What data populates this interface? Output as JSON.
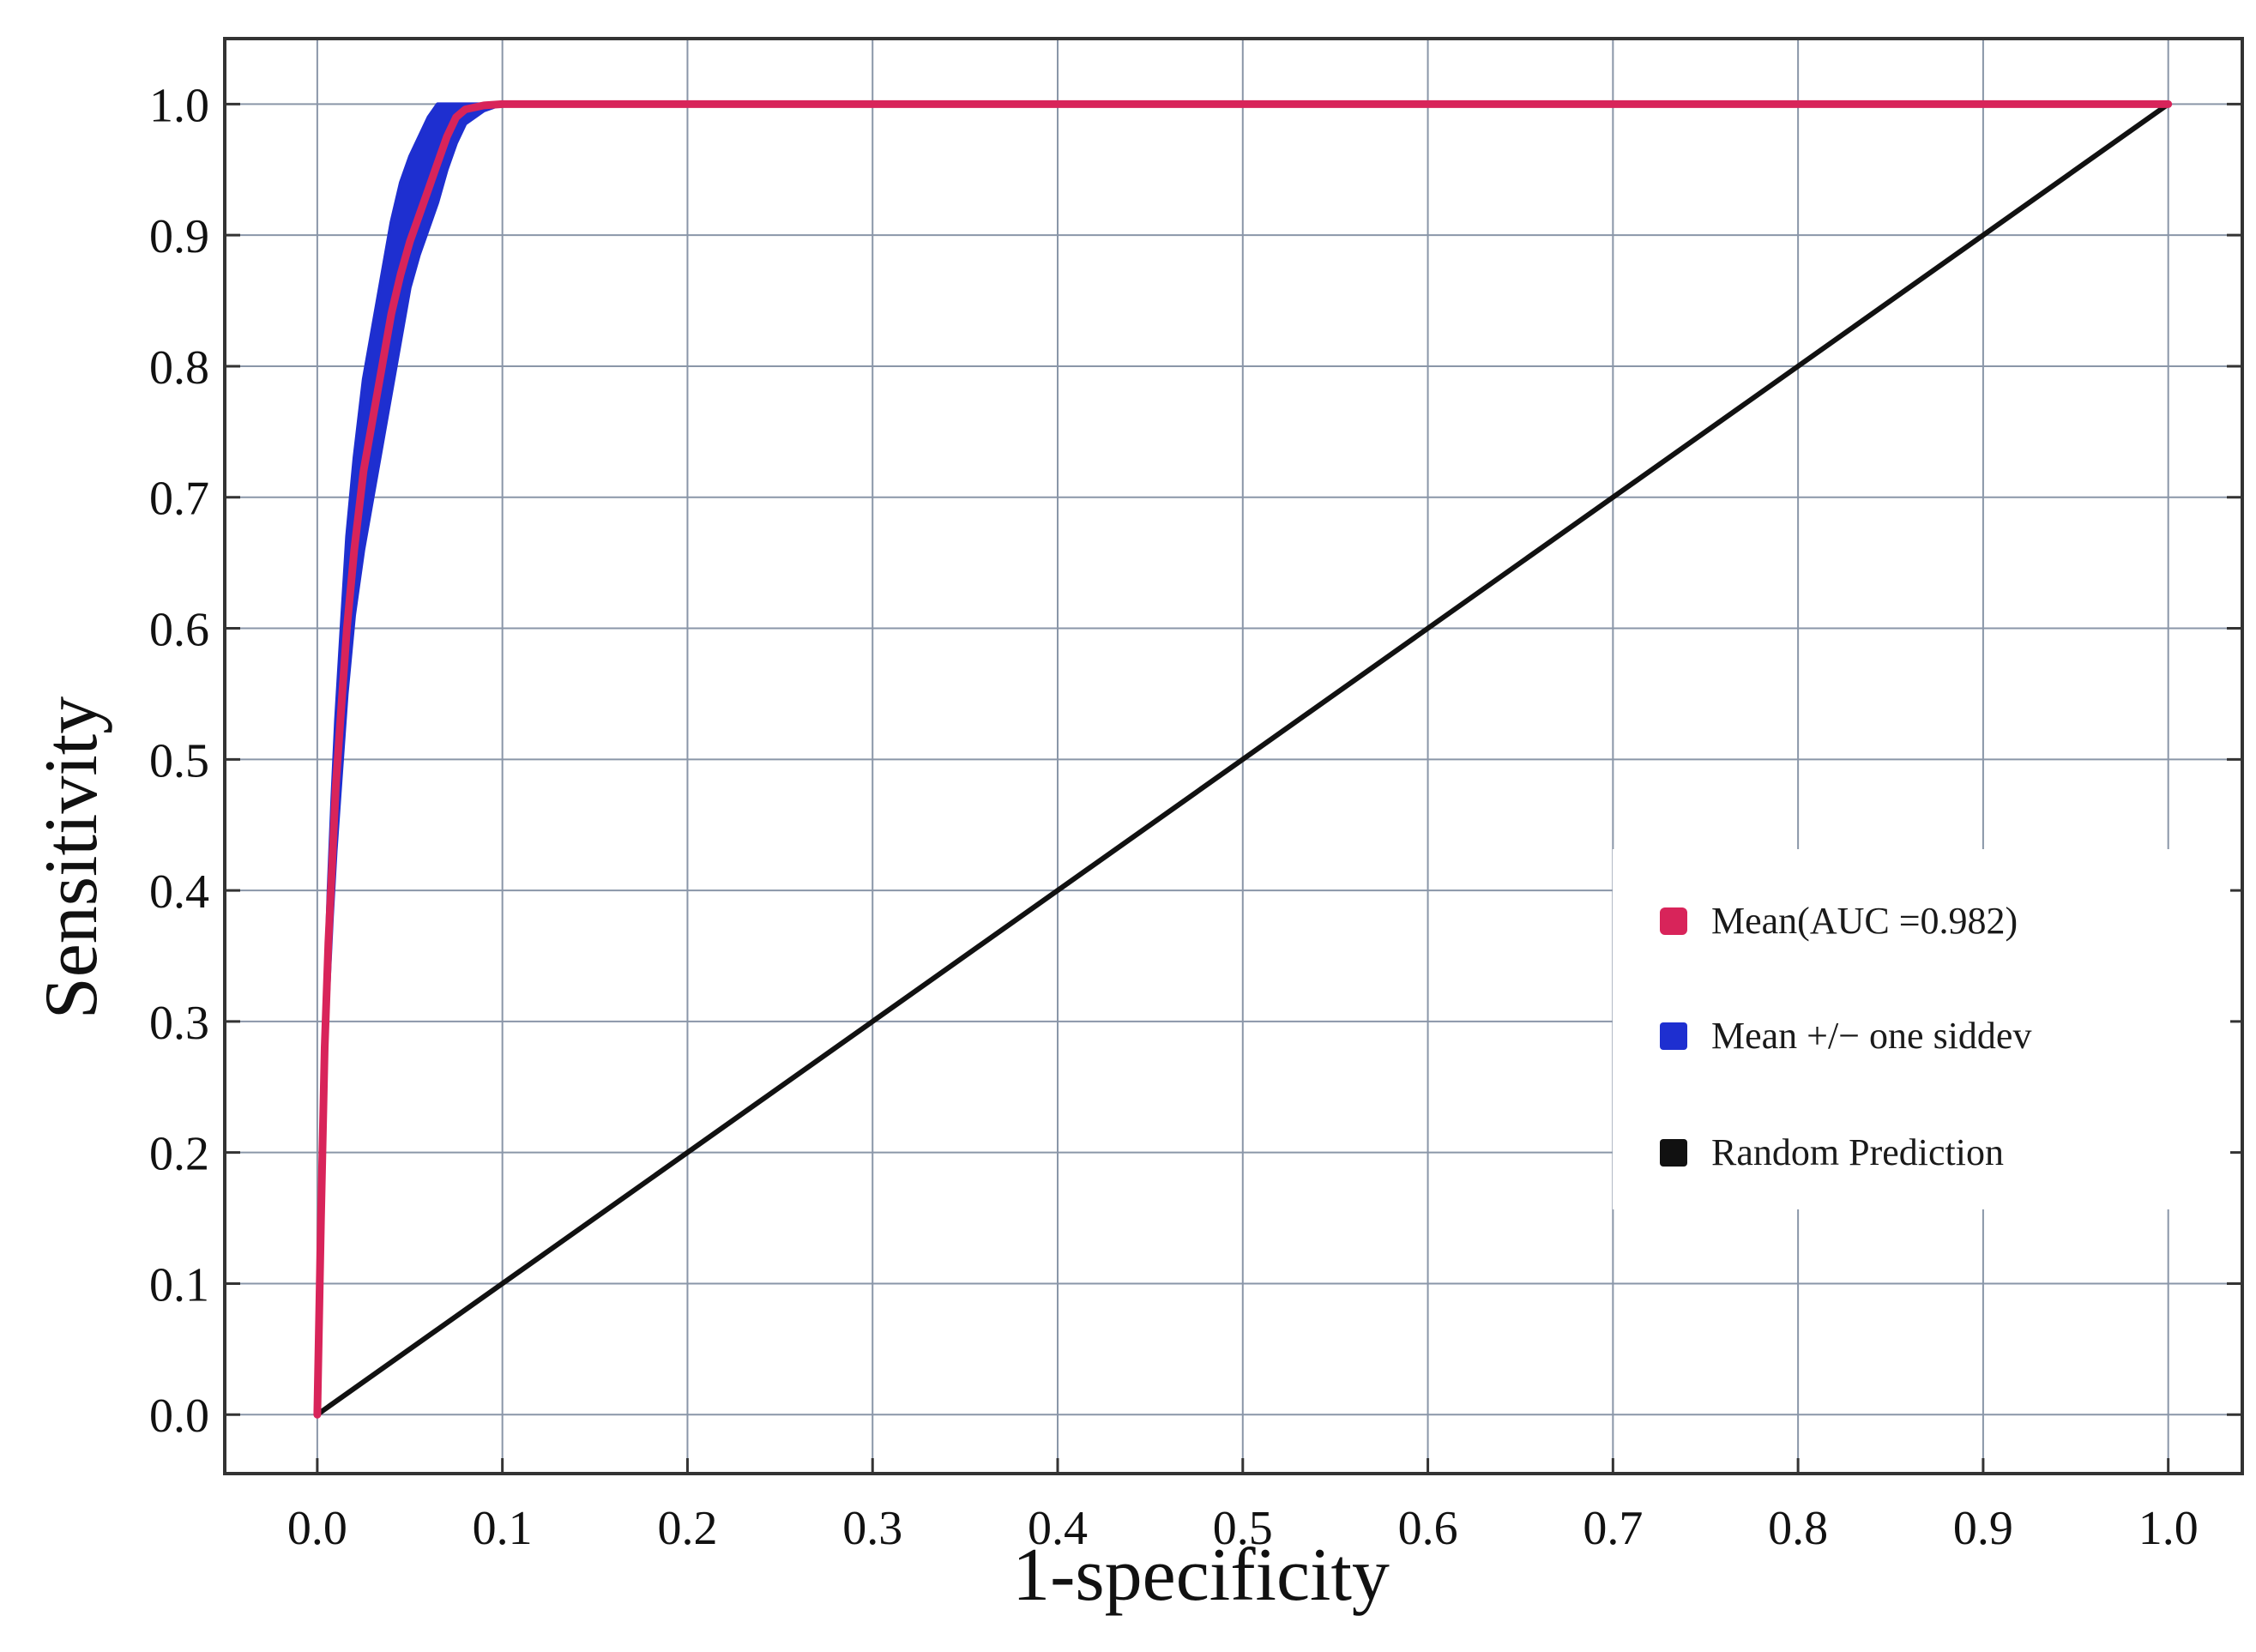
{
  "chart_data": {
    "type": "line",
    "title": "",
    "xlabel": "1-specificity",
    "ylabel": "Sensitivity",
    "xlim": [
      -0.05,
      1.04
    ],
    "ylim": [
      -0.045,
      1.05
    ],
    "x_ticks": [
      "0.0",
      "0.1",
      "0.2",
      "0.3",
      "0.4",
      "0.5",
      "0.6",
      "0.7",
      "0.8",
      "0.9",
      "1.0"
    ],
    "y_ticks": [
      "0.0",
      "0.1",
      "0.2",
      "0.3",
      "0.4",
      "0.5",
      "0.6",
      "0.7",
      "0.8",
      "0.9",
      "1.0"
    ],
    "grid": true,
    "legend_position": "lower-right",
    "legend": [
      {
        "label": "Mean(AUC =0.982)",
        "color": "#d8245a"
      },
      {
        "label": "Mean +/− one siddev",
        "color": "#1e2fd0"
      },
      {
        "label": "Random Prediction",
        "color": "#111111"
      }
    ],
    "series": [
      {
        "name": "Mean(AUC =0.982)",
        "color": "#d8245a",
        "x": [
          0.0,
          0.002,
          0.004,
          0.006,
          0.008,
          0.01,
          0.013,
          0.016,
          0.02,
          0.025,
          0.03,
          0.035,
          0.04,
          0.045,
          0.05,
          0.055,
          0.06,
          0.065,
          0.07,
          0.075,
          0.08,
          0.09,
          0.1,
          0.15,
          0.3,
          0.5,
          0.7,
          1.0
        ],
        "y": [
          0.0,
          0.15,
          0.28,
          0.36,
          0.42,
          0.48,
          0.54,
          0.6,
          0.66,
          0.72,
          0.76,
          0.8,
          0.84,
          0.87,
          0.895,
          0.915,
          0.935,
          0.955,
          0.975,
          0.99,
          0.996,
          0.999,
          1.0,
          1.0,
          1.0,
          1.0,
          1.0,
          1.0
        ]
      },
      {
        "name": "Mean +/− one siddev",
        "type": "band",
        "color": "#1e2fd0",
        "x": [
          0.0,
          0.002,
          0.004,
          0.006,
          0.008,
          0.01,
          0.013,
          0.016,
          0.02,
          0.025,
          0.03,
          0.035,
          0.04,
          0.045,
          0.05,
          0.055,
          0.06,
          0.065,
          0.07,
          0.075,
          0.08,
          0.09,
          0.1
        ],
        "upper": [
          0.0,
          0.17,
          0.31,
          0.4,
          0.47,
          0.53,
          0.6,
          0.67,
          0.73,
          0.79,
          0.83,
          0.87,
          0.91,
          0.94,
          0.96,
          0.975,
          0.99,
          1.0,
          1.0,
          1.0,
          1.0,
          1.0,
          1.0
        ],
        "lower": [
          0.0,
          0.13,
          0.25,
          0.32,
          0.38,
          0.43,
          0.49,
          0.55,
          0.61,
          0.66,
          0.7,
          0.74,
          0.78,
          0.82,
          0.86,
          0.885,
          0.905,
          0.925,
          0.95,
          0.97,
          0.985,
          0.995,
          1.0
        ]
      },
      {
        "name": "Random Prediction",
        "color": "#111111",
        "x": [
          0.0,
          1.0
        ],
        "y": [
          0.0,
          1.0
        ]
      }
    ]
  }
}
